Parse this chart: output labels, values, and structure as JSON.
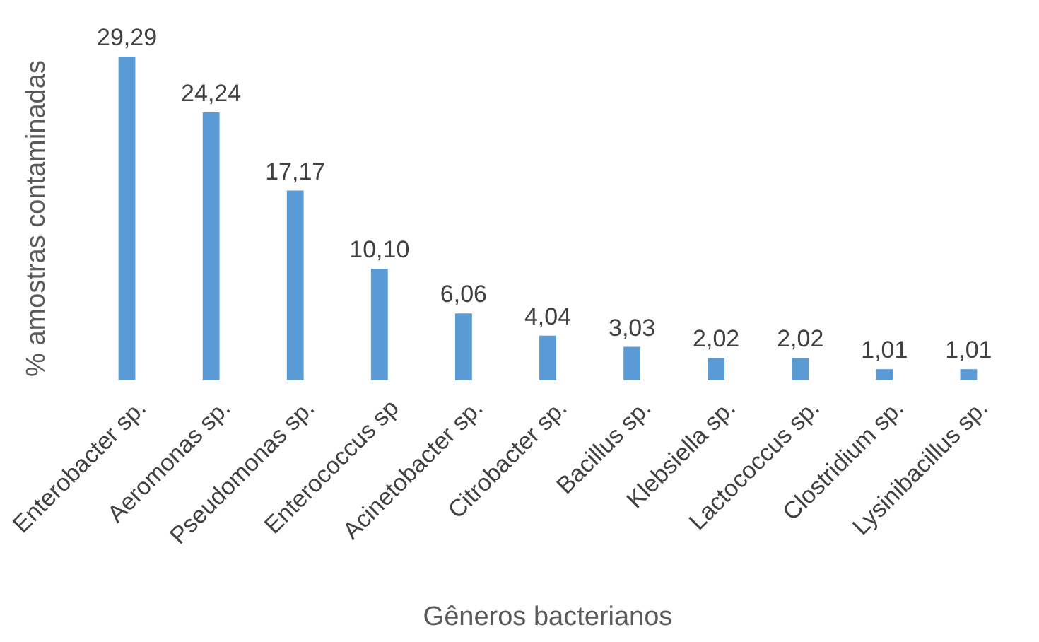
{
  "chart_data": {
    "type": "bar",
    "xlabel": "Gêneros bacterianos",
    "ylabel": "% amostras contaminadas",
    "categories": [
      "Enterobacter sp.",
      "Aeromonas sp.",
      "Pseudomonas sp.",
      "Enterococcus sp",
      "Acinetobacter sp.",
      "Citrobacter sp.",
      "Bacillus sp.",
      "Klebsiella sp.",
      "Lactococcus sp.",
      "Clostridium sp.",
      "Lysinibacillus sp."
    ],
    "values": [
      29.29,
      24.24,
      17.17,
      10.1,
      6.06,
      4.04,
      3.03,
      2.02,
      2.02,
      1.01,
      1.01
    ],
    "value_labels": [
      "29,29",
      "24,24",
      "17,17",
      "10,10",
      "6,06",
      "4,04",
      "3,03",
      "2,02",
      "2,02",
      "1,01",
      "1,01"
    ],
    "color": "#5b9bd5",
    "grid": false,
    "legend": false
  }
}
